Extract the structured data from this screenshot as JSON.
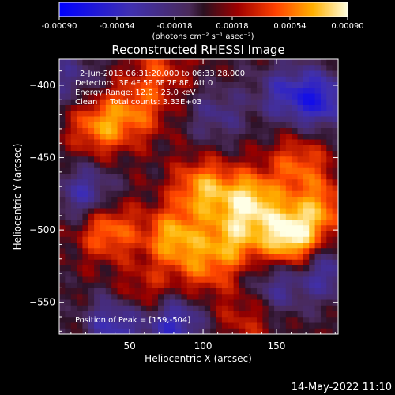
{
  "chart_data": {
    "type": "heatmap",
    "title": "Reconstructed RHESSI Image",
    "xlabel": "Heliocentric X (arcsec)",
    "ylabel": "Heliocentric Y (arcsec)",
    "xlim": [
      2,
      192
    ],
    "ylim": [
      -572,
      -382
    ],
    "x_ticks": [
      50,
      100,
      150
    ],
    "y_ticks": [
      -400,
      -450,
      -500,
      -550
    ],
    "colorbar": {
      "range": [
        -0.0009,
        0.0009
      ],
      "ticks": [
        "-0.00090",
        "-0.00054",
        "-0.00018",
        "0.00018",
        "0.00054",
        "0.00090"
      ],
      "units": "(photons cm⁻² s⁻¹ asec⁻²)"
    },
    "annotations": [
      "2-Jun-2013 06:31:20.000 to 06:33:28.000",
      "Detectors: 3F 4F 5F 6F 7F 8F, Att 0",
      "Energy Range: 12.0 - 25.0 keV",
      "Clean     Total counts: 3.33E+03"
    ],
    "peak_label": "Position of Peak = [159,-504]",
    "peak": [
      159,
      -504
    ],
    "date_stamp": "14-May-2022 11:10",
    "sources": [
      {
        "x": 100,
        "y": -472,
        "value": 0.0006
      },
      {
        "x": 132,
        "y": -480,
        "value": 0.00072
      },
      {
        "x": 159,
        "y": -504,
        "value": 0.00088
      },
      {
        "x": 80,
        "y": -505,
        "value": 0.0006
      },
      {
        "x": 120,
        "y": -507,
        "value": 0.00055
      },
      {
        "x": 30,
        "y": -428,
        "value": 0.00052
      },
      {
        "x": 55,
        "y": -418,
        "value": 0.00038
      },
      {
        "x": 165,
        "y": -455,
        "value": 0.0004
      },
      {
        "x": 180,
        "y": -485,
        "value": 0.00045
      },
      {
        "x": 35,
        "y": -500,
        "value": 0.0005
      },
      {
        "x": 100,
        "y": -527,
        "value": 0.00035
      },
      {
        "x": 60,
        "y": -545,
        "value": 0.00028
      },
      {
        "x": 130,
        "y": -560,
        "value": 0.00025
      },
      {
        "x": 70,
        "y": -390,
        "value": 0.0003
      },
      {
        "x": 155,
        "y": -405,
        "value": -0.0004
      },
      {
        "x": 180,
        "y": -410,
        "value": -0.0006
      },
      {
        "x": 20,
        "y": -475,
        "value": -0.00045
      },
      {
        "x": 110,
        "y": -420,
        "value": -0.0003
      },
      {
        "x": 40,
        "y": -565,
        "value": -0.0005
      },
      {
        "x": 150,
        "y": -540,
        "value": -0.00035
      },
      {
        "x": 185,
        "y": -530,
        "value": -0.0004
      },
      {
        "x": 80,
        "y": -565,
        "value": -0.00055
      },
      {
        "x": 10,
        "y": -395,
        "value": -0.0003
      }
    ]
  }
}
